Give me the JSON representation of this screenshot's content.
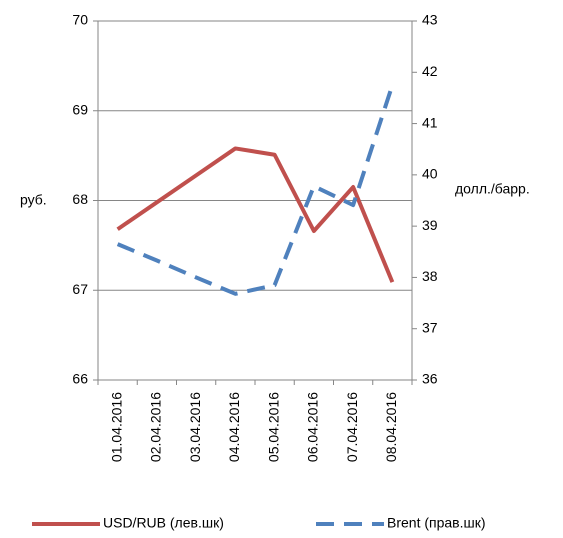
{
  "chart_data": {
    "type": "line",
    "categories": [
      "01.04.2016",
      "02.04.2016",
      "03.04.2016",
      "04.04.2016",
      "05.04.2016",
      "06.04.2016",
      "07.04.2016",
      "08.04.2016"
    ],
    "series": [
      {
        "name": "USD/RUB (лев.шк)",
        "color": "#c0504d",
        "dash": false,
        "values": [
          67.68,
          67.98,
          68.28,
          68.58,
          68.51,
          67.66,
          68.15,
          67.09
        ]
      },
      {
        "name": "Brent (прав.шк)",
        "color": "#4f81bd",
        "dash": true,
        "axis": "y2",
        "values": [
          38.65,
          38.33,
          38.0,
          37.68,
          37.85,
          39.78,
          39.41,
          41.75
        ]
      }
    ],
    "ylabel": "руб.",
    "y2label": "долл./барр.",
    "ylim": [
      66,
      70
    ],
    "yticks": [
      66,
      67,
      68,
      69,
      70
    ],
    "y2lim": [
      36,
      43
    ],
    "y2ticks": [
      36,
      37,
      38,
      39,
      40,
      41,
      42,
      43
    ],
    "grid": true,
    "legend": "bottom"
  }
}
